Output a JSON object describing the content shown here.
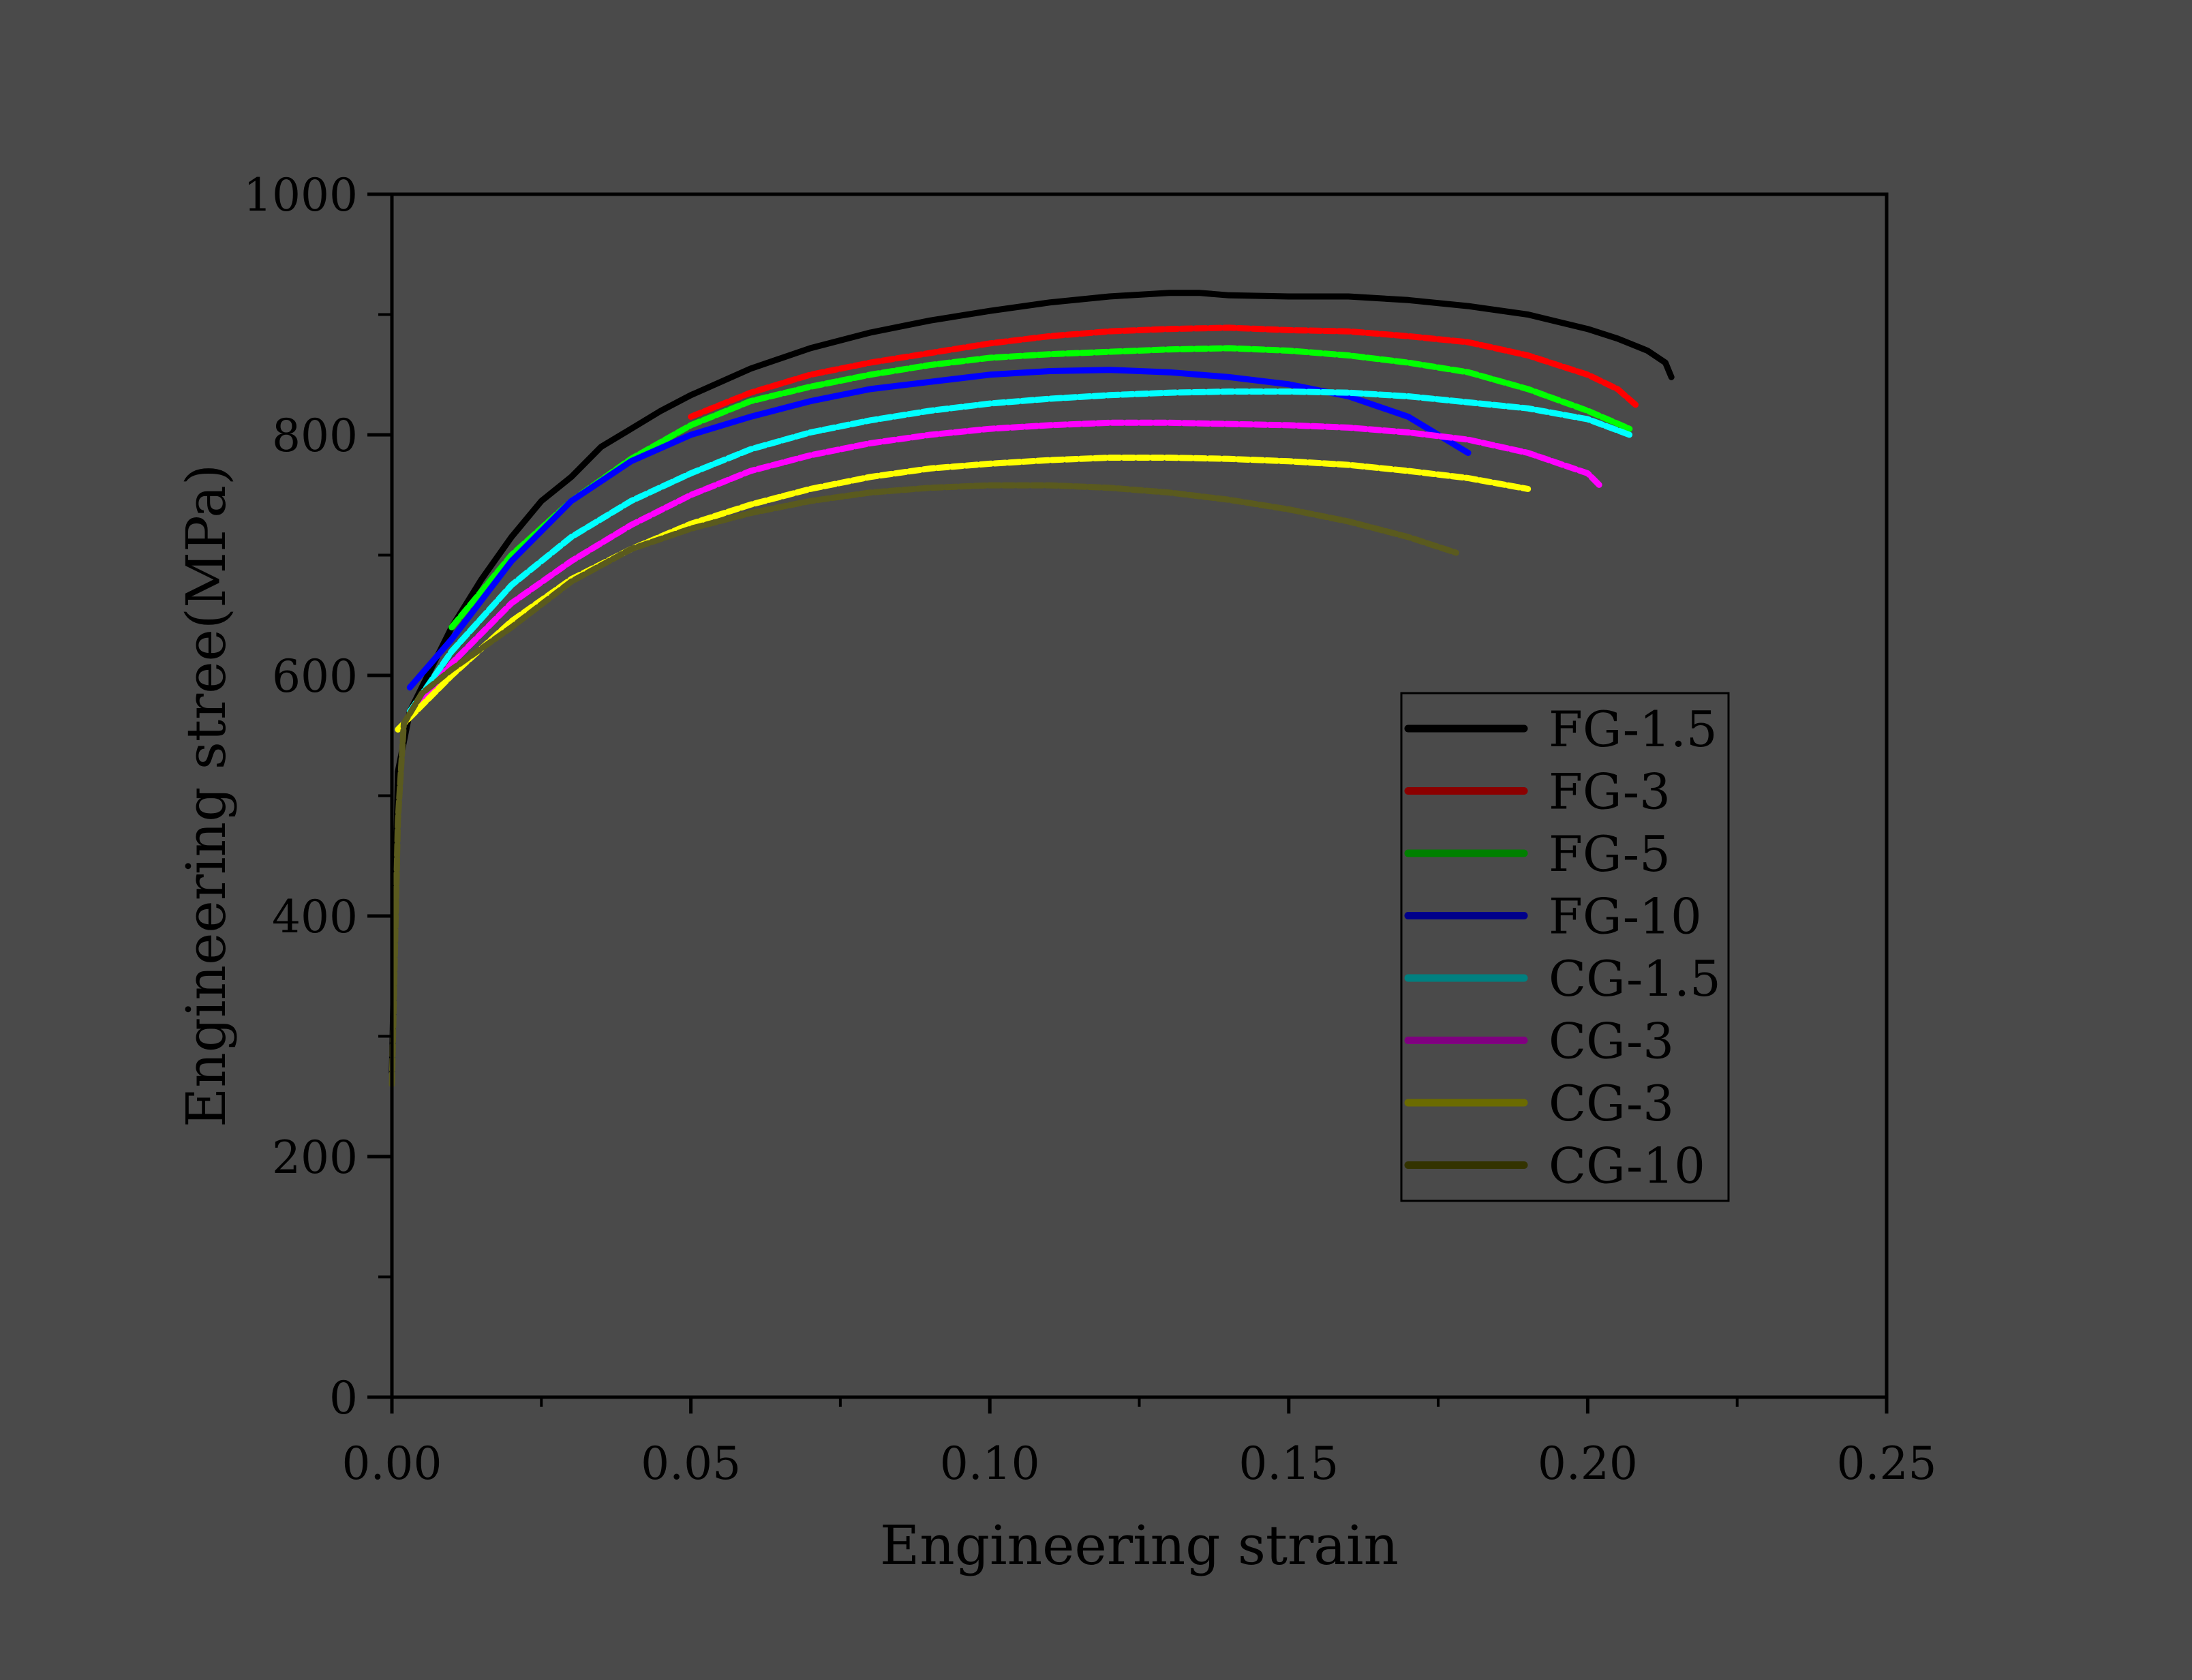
{
  "chart_data": {
    "type": "line",
    "xlabel": "Engineering strain",
    "ylabel": "Engineering stree(MPa)",
    "xlim": [
      0.0,
      0.25
    ],
    "ylim": [
      0,
      1000
    ],
    "x_ticks": [
      "0.00",
      "0.05",
      "0.10",
      "0.15",
      "0.20",
      "0.25"
    ],
    "y_ticks": [
      "0",
      "200",
      "400",
      "600",
      "800",
      "1000"
    ],
    "grid": false,
    "legend_position": "lower-right",
    "background_color": "#4a4a4a",
    "series": [
      {
        "name": "FG-1.5",
        "color": "#000000",
        "legend_color": "#000000",
        "style": "solid",
        "x": [
          0,
          0.001,
          0.003,
          0.006,
          0.01,
          0.015,
          0.02,
          0.025,
          0.03,
          0.035,
          0.04,
          0.045,
          0.05,
          0.06,
          0.07,
          0.08,
          0.09,
          0.1,
          0.11,
          0.12,
          0.13,
          0.135,
          0.14,
          0.15,
          0.16,
          0.17,
          0.18,
          0.19,
          0.2,
          0.205,
          0.21,
          0.213,
          0.214
        ],
        "y": [
          270,
          520,
          570,
          600,
          640,
          680,
          715,
          745,
          765,
          790,
          805,
          820,
          833,
          855,
          872,
          885,
          895,
          903,
          910,
          915,
          918,
          918,
          916,
          915,
          915,
          912,
          907,
          900,
          888,
          880,
          870,
          860,
          848
        ]
      },
      {
        "name": "FG-3",
        "color": "#ff0000",
        "legend_color": "#8b0000",
        "style": "dashed",
        "x": [
          0.05,
          0.06,
          0.07,
          0.08,
          0.09,
          0.1,
          0.11,
          0.12,
          0.13,
          0.14,
          0.15,
          0.16,
          0.17,
          0.18,
          0.19,
          0.2,
          0.205,
          0.208
        ],
        "y": [
          815,
          835,
          850,
          860,
          868,
          876,
          882,
          886,
          888,
          889,
          887,
          886,
          882,
          877,
          866,
          850,
          838,
          825
        ]
      },
      {
        "name": "FG-5",
        "color": "#00ff00",
        "legend_color": "#008000",
        "style": "dashed",
        "x": [
          0.01,
          0.02,
          0.03,
          0.04,
          0.05,
          0.06,
          0.07,
          0.08,
          0.09,
          0.1,
          0.11,
          0.12,
          0.13,
          0.14,
          0.15,
          0.16,
          0.17,
          0.18,
          0.19,
          0.2,
          0.207
        ],
        "y": [
          640,
          700,
          745,
          780,
          808,
          828,
          840,
          850,
          858,
          864,
          867,
          869,
          871,
          872,
          870,
          866,
          860,
          852,
          838,
          820,
          805
        ]
      },
      {
        "name": "FG-10",
        "color": "#0000ff",
        "legend_color": "#00008b",
        "style": "solid",
        "x": [
          0.003,
          0.01,
          0.02,
          0.03,
          0.04,
          0.05,
          0.06,
          0.07,
          0.08,
          0.09,
          0.1,
          0.11,
          0.12,
          0.13,
          0.14,
          0.15,
          0.16,
          0.17,
          0.175,
          0.18
        ],
        "y": [
          590,
          630,
          695,
          745,
          778,
          800,
          815,
          828,
          838,
          844,
          850,
          853,
          854,
          852,
          848,
          842,
          832,
          815,
          800,
          785
        ]
      },
      {
        "name": "CG-1.5",
        "color": "#00ffff",
        "legend_color": "#008080",
        "style": "dashed",
        "x": [
          0.003,
          0.01,
          0.02,
          0.03,
          0.04,
          0.05,
          0.06,
          0.07,
          0.08,
          0.09,
          0.1,
          0.11,
          0.12,
          0.13,
          0.14,
          0.15,
          0.16,
          0.17,
          0.18,
          0.19,
          0.2,
          0.207
        ],
        "y": [
          570,
          620,
          675,
          715,
          745,
          768,
          788,
          802,
          812,
          820,
          826,
          830,
          833,
          835,
          836,
          836,
          835,
          832,
          827,
          822,
          813,
          800
        ]
      },
      {
        "name": "CG-3",
        "color": "#ff00ff",
        "legend_color": "#800080",
        "style": "dashed",
        "x": [
          0.002,
          0.01,
          0.02,
          0.03,
          0.04,
          0.05,
          0.06,
          0.07,
          0.08,
          0.09,
          0.1,
          0.11,
          0.12,
          0.13,
          0.14,
          0.15,
          0.16,
          0.17,
          0.18,
          0.19,
          0.2,
          0.202
        ],
        "y": [
          560,
          610,
          660,
          695,
          725,
          750,
          770,
          783,
          793,
          800,
          805,
          808,
          810,
          810,
          809,
          808,
          806,
          802,
          796,
          785,
          768,
          758
        ]
      },
      {
        "name": "CG-3",
        "color": "#ffff00",
        "legend_color": "#6b6b00",
        "style": "dashed",
        "x": [
          0.001,
          0.01,
          0.02,
          0.03,
          0.04,
          0.05,
          0.06,
          0.07,
          0.08,
          0.09,
          0.1,
          0.11,
          0.12,
          0.13,
          0.14,
          0.15,
          0.16,
          0.17,
          0.18,
          0.19
        ],
        "y": [
          555,
          600,
          645,
          680,
          705,
          726,
          742,
          755,
          765,
          772,
          776,
          779,
          781,
          781,
          780,
          778,
          775,
          770,
          764,
          755
        ]
      },
      {
        "name": "CG-10",
        "color": "#5a5a1e",
        "legend_color": "#333300",
        "style": "dashed",
        "x": [
          0,
          0.001,
          0.002,
          0.005,
          0.01,
          0.02,
          0.03,
          0.04,
          0.05,
          0.06,
          0.07,
          0.08,
          0.09,
          0.1,
          0.11,
          0.12,
          0.13,
          0.14,
          0.15,
          0.16,
          0.17,
          0.178
        ],
        "y": [
          260,
          480,
          560,
          585,
          605,
          640,
          678,
          705,
          722,
          735,
          745,
          752,
          756,
          758,
          758,
          756,
          752,
          746,
          738,
          728,
          715,
          702
        ]
      }
    ]
  }
}
